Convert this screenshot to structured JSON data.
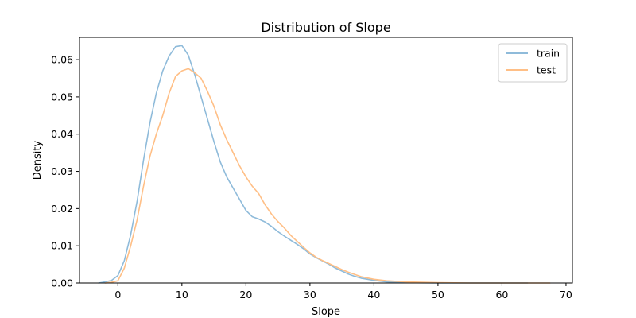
{
  "chart_data": {
    "type": "line",
    "title": "Distribution of Slope",
    "xlabel": "Slope",
    "ylabel": "Density",
    "xlim": [
      -6,
      71
    ],
    "ylim": [
      0,
      0.066
    ],
    "xticks": [
      0,
      10,
      20,
      30,
      40,
      50,
      60,
      70
    ],
    "yticks": [
      0.0,
      0.01,
      0.02,
      0.03,
      0.04,
      0.05,
      0.06
    ],
    "ytick_labels": [
      "0.00",
      "0.01",
      "0.02",
      "0.03",
      "0.04",
      "0.05",
      "0.06"
    ],
    "grid": false,
    "legend_position": "top-right",
    "series": [
      {
        "name": "train",
        "color": "#8fbbda",
        "x": [
          -3,
          -2,
          -1,
          0,
          1,
          2,
          3,
          4,
          5,
          6,
          7,
          8,
          9,
          10,
          11,
          12,
          13,
          14,
          15,
          16,
          17,
          18,
          19,
          20,
          21,
          22,
          23,
          24,
          25,
          26,
          27,
          28,
          29,
          30,
          31,
          32,
          33,
          34,
          35,
          36,
          37,
          38,
          40,
          42,
          45,
          50,
          55,
          60,
          64
        ],
        "y": [
          0.0,
          0.0003,
          0.0007,
          0.002,
          0.006,
          0.013,
          0.022,
          0.033,
          0.043,
          0.051,
          0.057,
          0.061,
          0.0635,
          0.0638,
          0.0612,
          0.056,
          0.05,
          0.044,
          0.038,
          0.0325,
          0.0285,
          0.0255,
          0.0225,
          0.0195,
          0.0178,
          0.0172,
          0.0164,
          0.0152,
          0.0138,
          0.0126,
          0.0115,
          0.0104,
          0.0092,
          0.0078,
          0.0068,
          0.0059,
          0.005,
          0.004,
          0.0032,
          0.0024,
          0.0018,
          0.0013,
          0.0007,
          0.0003,
          0.0001,
          0.0,
          0.0,
          0.0,
          0.0
        ]
      },
      {
        "name": "test",
        "color": "#ffbf86",
        "x": [
          -2,
          -1,
          0,
          1,
          2,
          3,
          4,
          5,
          6,
          7,
          8,
          9,
          10,
          11,
          12,
          13,
          14,
          15,
          16,
          17,
          18,
          19,
          20,
          21,
          22,
          23,
          24,
          25,
          26,
          27,
          28,
          29,
          30,
          31,
          32,
          33,
          34,
          35,
          36,
          37,
          38,
          40,
          42,
          45,
          50,
          55,
          60,
          67.5
        ],
        "y": [
          0.0,
          0.0002,
          0.0006,
          0.004,
          0.01,
          0.017,
          0.026,
          0.034,
          0.04,
          0.045,
          0.051,
          0.0555,
          0.057,
          0.0576,
          0.0565,
          0.055,
          0.0515,
          0.0475,
          0.0425,
          0.0385,
          0.035,
          0.0315,
          0.0285,
          0.026,
          0.024,
          0.021,
          0.0185,
          0.0165,
          0.0148,
          0.0128,
          0.0112,
          0.0096,
          0.0081,
          0.0069,
          0.006,
          0.0052,
          0.0044,
          0.0036,
          0.0029,
          0.0023,
          0.0017,
          0.001,
          0.0006,
          0.0003,
          0.0001,
          0.0,
          0.0,
          0.0
        ]
      }
    ]
  }
}
